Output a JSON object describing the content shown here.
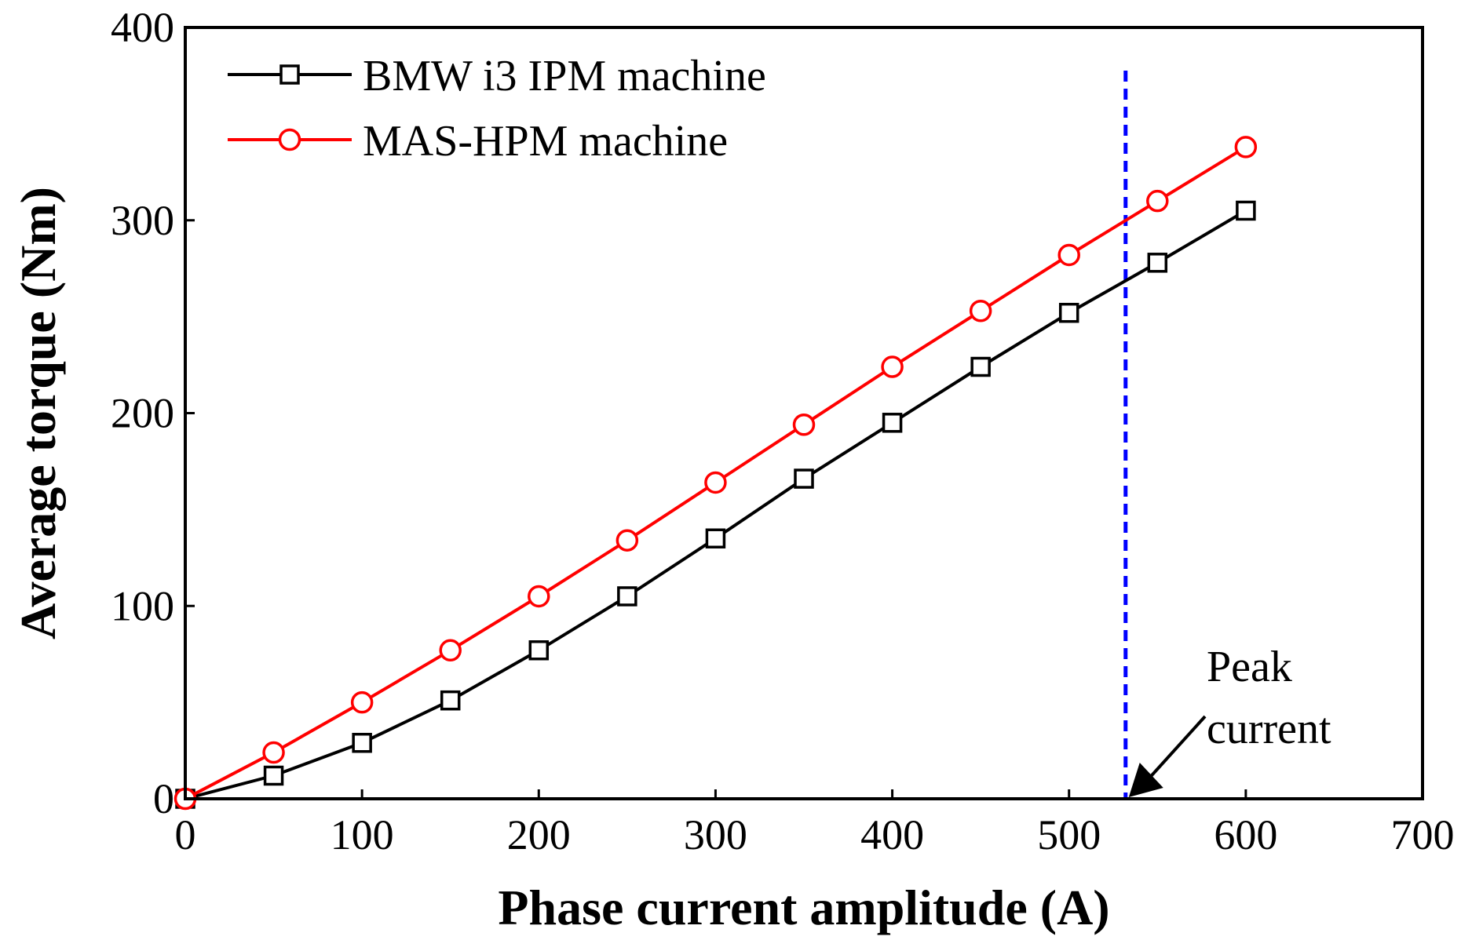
{
  "chart_data": {
    "type": "line",
    "title": "",
    "xlabel": "Phase current amplitude (A)",
    "ylabel": "Average torque (Nm)",
    "xlim": [
      0,
      700
    ],
    "ylim": [
      0,
      400
    ],
    "xticks": [
      0,
      100,
      200,
      300,
      400,
      500,
      600,
      700
    ],
    "yticks": [
      0,
      100,
      200,
      300,
      400
    ],
    "grid": false,
    "legend_position": "top-left",
    "series": [
      {
        "name": "BMW i3 IPM machine",
        "color": "#000000",
        "marker": "square",
        "x": [
          0,
          50,
          100,
          150,
          200,
          250,
          300,
          350,
          400,
          450,
          500,
          550,
          600
        ],
        "y": [
          0,
          12,
          29,
          51,
          77,
          105,
          135,
          166,
          195,
          224,
          252,
          278,
          305
        ]
      },
      {
        "name": "MAS-HPM machine",
        "color": "#ff0000",
        "marker": "circle",
        "x": [
          0,
          50,
          100,
          150,
          200,
          250,
          300,
          350,
          400,
          450,
          500,
          550,
          600
        ],
        "y": [
          0,
          24,
          50,
          77,
          105,
          134,
          164,
          194,
          224,
          253,
          282,
          310,
          338
        ]
      }
    ],
    "reference_line": {
      "x": 532,
      "color": "#0000ff",
      "style": "dashed"
    },
    "annotation": {
      "lines": [
        "Peak",
        "current"
      ],
      "points_to_x": 532,
      "points_to_y": 0
    }
  }
}
